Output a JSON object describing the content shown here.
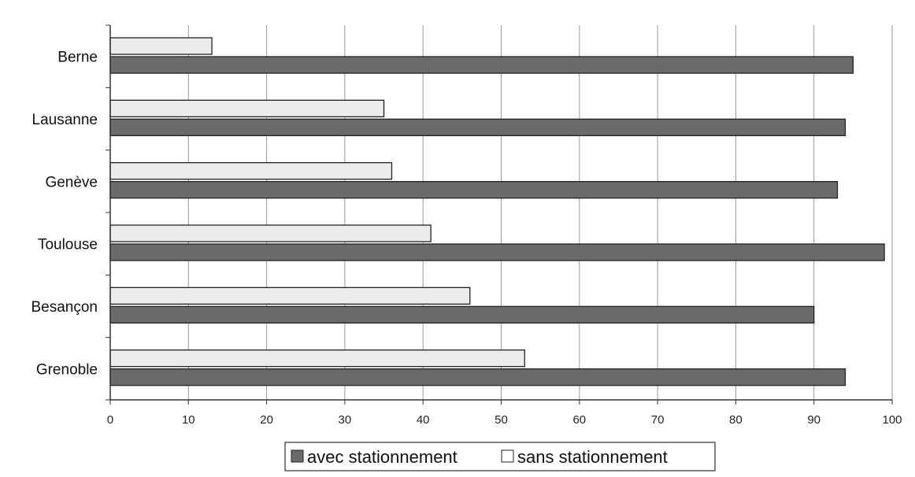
{
  "chart_data": {
    "type": "bar",
    "orientation": "horizontal",
    "categories": [
      "Berne",
      "Lausanne",
      "Genève",
      "Toulouse",
      "Besançon",
      "Grenoble"
    ],
    "series": [
      {
        "name": "avec stationnement",
        "color": "#6b6b6b",
        "values": [
          95,
          94,
          93,
          99,
          90,
          94
        ]
      },
      {
        "name": "sans stationnement",
        "color": "#ececec",
        "values": [
          13,
          35,
          36,
          41,
          46,
          53
        ]
      }
    ],
    "xlim": [
      0,
      100
    ],
    "xticks": [
      0,
      10,
      20,
      30,
      40,
      50,
      60,
      70,
      80,
      90,
      100
    ],
    "grid": true,
    "legend_position": "bottom",
    "title": "",
    "xlabel": "",
    "ylabel": ""
  }
}
